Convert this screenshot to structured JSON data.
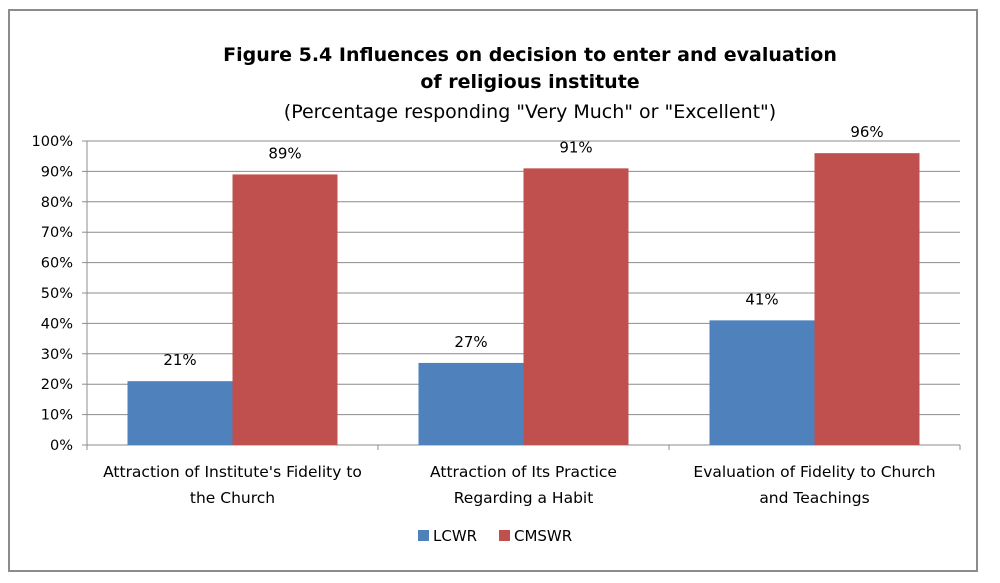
{
  "chart_data": {
    "type": "bar",
    "title_lines": [
      "Figure 5.4 Influences on decision to enter and evaluation",
      "of religious institute"
    ],
    "subtitle": "(Percentage responding \"Very Much\" or \"Excellent\")",
    "categories": [
      [
        "Attraction of Institute's Fidelity to",
        "the Church"
      ],
      [
        "Attraction of Its Practice",
        "Regarding a Habit"
      ],
      [
        "Evaluation of Fidelity to Church",
        "and Teachings"
      ]
    ],
    "series": [
      {
        "name": "LCWR",
        "color": "#4f81bd",
        "values": [
          21,
          27,
          41
        ],
        "labels": [
          "21%",
          "27%",
          "41%"
        ]
      },
      {
        "name": "CMSWR",
        "color": "#c0504d",
        "values": [
          89,
          91,
          96
        ],
        "labels": [
          "89%",
          "91%",
          "96%"
        ]
      }
    ],
    "ylim": [
      0,
      100
    ],
    "yticks": [
      0,
      10,
      20,
      30,
      40,
      50,
      60,
      70,
      80,
      90,
      100
    ],
    "ytick_labels": [
      "0%",
      "10%",
      "20%",
      "30%",
      "40%",
      "50%",
      "60%",
      "70%",
      "80%",
      "90%",
      "100%"
    ],
    "grid": true,
    "legend_position": "bottom"
  }
}
